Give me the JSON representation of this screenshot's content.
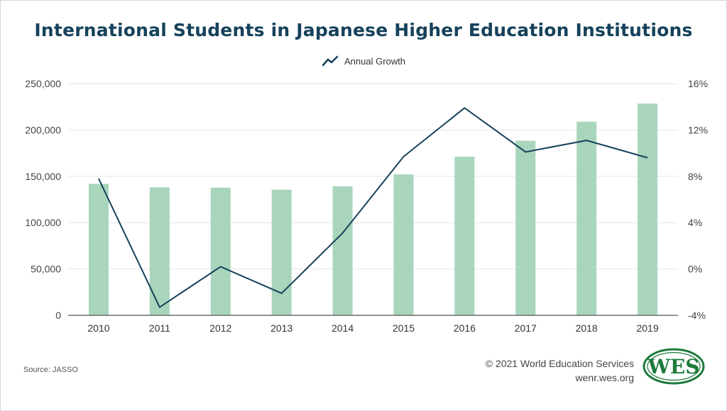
{
  "title": "International Students in Japanese Higher Education Institutions",
  "legend": {
    "line_label": "Annual Growth"
  },
  "source": "Source: JASSO",
  "credit": {
    "copyright": "© 2021 World Education Services",
    "url": "wenr.wes.org"
  },
  "logo": {
    "text": "WES",
    "color": "#1e7a3c"
  },
  "colors": {
    "bar": "#a8d5bc",
    "line": "#16425b",
    "title": "#16425b",
    "grid": "#e6e6e6"
  },
  "chart_data": {
    "type": "bar",
    "categories": [
      "2010",
      "2011",
      "2012",
      "2013",
      "2014",
      "2015",
      "2016",
      "2017",
      "2018",
      "2019"
    ],
    "series": [
      {
        "type": "bar",
        "axis": "left",
        "values": [
          141774,
          138075,
          137756,
          135519,
          139185,
          152062,
          171122,
          188384,
          208901,
          228403
        ]
      },
      {
        "name": "Annual Growth",
        "type": "line",
        "axis": "right",
        "values": [
          7.8,
          -3.3,
          0.2,
          -2.1,
          3.1,
          9.7,
          13.9,
          10.1,
          11.1,
          9.6
        ]
      }
    ],
    "y_left": {
      "ylim": [
        0,
        250000
      ],
      "ticks": [
        0,
        50000,
        100000,
        150000,
        200000,
        250000
      ],
      "tick_labels": [
        "0",
        "50,000",
        "100,000",
        "150,000",
        "200,000",
        "250,000"
      ]
    },
    "y_right": {
      "ylim": [
        -4,
        16
      ],
      "ticks": [
        -4,
        0,
        4,
        8,
        12,
        16
      ],
      "tick_labels": [
        "-4%",
        "0%",
        "4%",
        "8%",
        "12%",
        "16%"
      ]
    },
    "grid": true,
    "legend_position": "top-center"
  }
}
